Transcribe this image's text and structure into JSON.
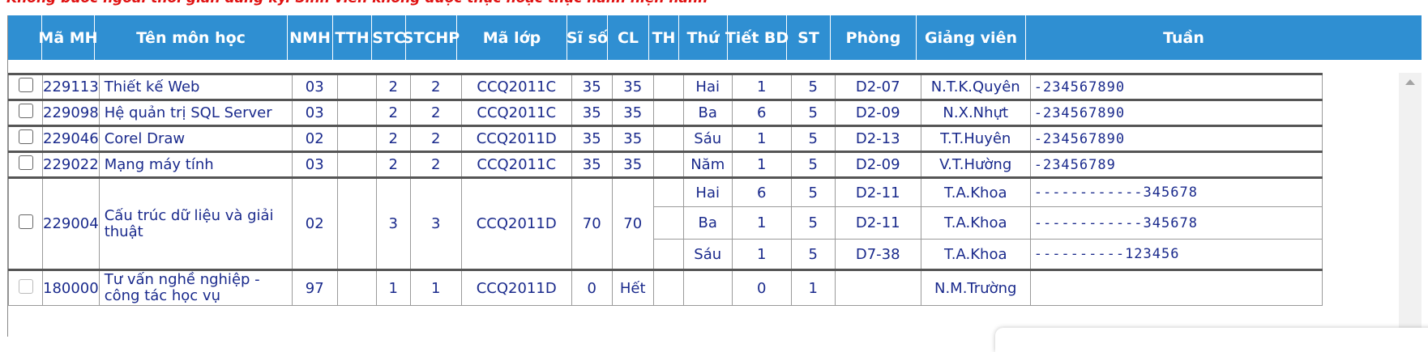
{
  "notice": "Không bước ngoài thời gian đăng ký. Sinh viên không được thực hoặc thực hành hiện hành",
  "columns": [
    "",
    "Mã MH",
    "Tên môn học",
    "NMH",
    "TTH",
    "STC",
    "STCHP",
    "Mã lớp",
    "Sĩ số",
    "CL",
    "TH",
    "Thứ",
    "Tiết BD",
    "ST",
    "Phòng",
    "Giảng viên",
    "Tuần"
  ],
  "rows": [
    {
      "code": "229113",
      "name": "Thiết kế Web",
      "nmh": "03",
      "tth": "",
      "stc": "2",
      "stchp": "2",
      "class": "CCQ2011C",
      "size": "35",
      "cl": "35",
      "th": "",
      "day": "Hai",
      "start": "1",
      "st": "5",
      "room": "D2-07",
      "teacher": "N.T.K.Quyên",
      "weeks": "-234567890"
    },
    {
      "code": "229098",
      "name": "Hệ quản trị SQL Server",
      "nmh": "03",
      "tth": "",
      "stc": "2",
      "stchp": "2",
      "class": "CCQ2011C",
      "size": "35",
      "cl": "35",
      "th": "",
      "day": "Ba",
      "start": "6",
      "st": "5",
      "room": "D2-09",
      "teacher": "N.X.Nhựt",
      "weeks": "-234567890"
    },
    {
      "code": "229046",
      "name": "Corel Draw",
      "nmh": "02",
      "tth": "",
      "stc": "2",
      "stchp": "2",
      "class": "CCQ2011D",
      "size": "35",
      "cl": "35",
      "th": "",
      "day": "Sáu",
      "start": "1",
      "st": "5",
      "room": "D2-13",
      "teacher": "T.T.Huyên",
      "weeks": "-234567890"
    },
    {
      "code": "229022",
      "name": "Mạng máy tính",
      "nmh": "03",
      "tth": "",
      "stc": "2",
      "stchp": "2",
      "class": "CCQ2011C",
      "size": "35",
      "cl": "35",
      "th": "",
      "day": "Năm",
      "start": "1",
      "st": "5",
      "room": "D2-09",
      "teacher": "V.T.Hường",
      "weeks": "-23456789"
    }
  ],
  "multi_row": {
    "code": "229004",
    "name": "Cấu trúc dữ liệu và giải thuật",
    "nmh": "02",
    "tth": "",
    "stc": "3",
    "stchp": "3",
    "class": "CCQ2011D",
    "size": "70",
    "cl": "70",
    "sessions": [
      {
        "th": "",
        "day": "Hai",
        "start": "6",
        "st": "5",
        "room": "D2-11",
        "teacher": "T.A.Khoa",
        "weeks": "------------345678"
      },
      {
        "th": "",
        "day": "Ba",
        "start": "1",
        "st": "5",
        "room": "D2-11",
        "teacher": "T.A.Khoa",
        "weeks": "------------345678"
      },
      {
        "th": "",
        "day": "Sáu",
        "start": "1",
        "st": "5",
        "room": "D7-38",
        "teacher": "T.A.Khoa",
        "weeks": "----------123456"
      }
    ]
  },
  "last_row": {
    "code": "180000",
    "name": "Tư vấn nghề nghiệp - công tác học vụ",
    "nmh": "97",
    "tth": "",
    "stc": "1",
    "stchp": "1",
    "class": "CCQ2011D",
    "size": "0",
    "cl": "Hết",
    "th": "",
    "day": "",
    "start": "0",
    "st": "1",
    "room": "",
    "teacher": "N.M.Trường",
    "weeks": ""
  }
}
